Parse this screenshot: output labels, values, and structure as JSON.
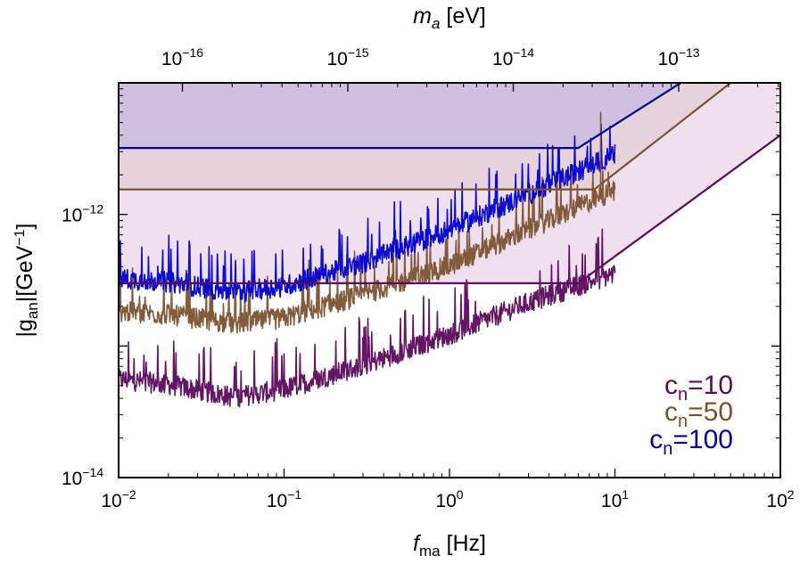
{
  "chart_data": {
    "type": "line",
    "x_scale": "log",
    "y_scale": "log",
    "xlim": [
      0.01,
      100
    ],
    "ylim": [
      1e-14,
      1e-11
    ],
    "xlabel_main": "f",
    "xlabel_sub": "ma",
    "xlabel_unit": " [Hz]",
    "ylabel_main": "|g",
    "ylabel_sub": "an",
    "ylabel_unit": "|[GeV",
    "ylabel_sup": "−1",
    "ylabel_end": "]",
    "top_xlabel_main": "m",
    "top_xlabel_sub": "a",
    "top_xlabel_unit": " [eV]",
    "x_ticks": [
      {
        "base": "10",
        "exp": "−2",
        "value": 0.01
      },
      {
        "base": "10",
        "exp": "−1",
        "value": 0.1
      },
      {
        "base": "10",
        "exp": "0",
        "value": 1
      },
      {
        "base": "10",
        "exp": "1",
        "value": 10
      },
      {
        "base": "10",
        "exp": "2",
        "value": 100
      }
    ],
    "y_ticks": [
      {
        "base": "10",
        "exp": "−14",
        "value": 1e-14
      },
      {
        "base": "10",
        "exp": "−12",
        "value": 1e-12
      }
    ],
    "top_ticks": [
      {
        "base": "10",
        "exp": "−16",
        "f_value": 0.0243
      },
      {
        "base": "10",
        "exp": "−15",
        "f_value": 0.243
      },
      {
        "base": "10",
        "exp": "−14",
        "f_value": 2.43
      },
      {
        "base": "10",
        "exp": "−13",
        "f_value": 24.3
      }
    ],
    "series": [
      {
        "name": "c",
        "name_sub": "n",
        "name_rest": "=10",
        "color": "#5a0a5c",
        "fill": "#ecd9ec",
        "limit_line": [
          [
            0.01,
            3e-13
          ],
          [
            6,
            3e-13
          ],
          [
            100,
            4e-12
          ]
        ],
        "noise_curve": [
          [
            0.01,
            5.5e-14
          ],
          [
            0.02,
            5e-14
          ],
          [
            0.05,
            4e-14
          ],
          [
            0.1,
            4.6e-14
          ],
          [
            0.3,
            7e-14
          ],
          [
            1,
            1.2e-13
          ],
          [
            3,
            2.1e-13
          ],
          [
            10,
            3.5e-13
          ]
        ]
      },
      {
        "name": "c",
        "name_sub": "n",
        "name_rest": "=50",
        "color": "#7a5230",
        "fill": "#e4d0d8",
        "limit_line": [
          [
            0.01,
            1.55e-12
          ],
          [
            7.5,
            1.55e-12
          ],
          [
            50,
            1e-11
          ]
        ],
        "noise_curve": [
          [
            0.01,
            1.8e-13
          ],
          [
            0.02,
            1.7e-13
          ],
          [
            0.05,
            1.45e-13
          ],
          [
            0.1,
            1.6e-13
          ],
          [
            0.3,
            2.4e-13
          ],
          [
            1,
            4e-13
          ],
          [
            3,
            7.5e-13
          ],
          [
            10,
            1.5e-12
          ]
        ]
      },
      {
        "name": "c",
        "name_sub": "n",
        "name_rest": "=100",
        "color": "#0000cc",
        "line_color": "#00008b",
        "fill": "#cbbce0",
        "limit_line": [
          [
            0.01,
            3.2e-12
          ],
          [
            6,
            3.2e-12
          ],
          [
            25,
            1e-11
          ]
        ],
        "noise_curve": [
          [
            0.01,
            3.2e-13
          ],
          [
            0.02,
            3e-13
          ],
          [
            0.05,
            2.5e-13
          ],
          [
            0.1,
            2.8e-13
          ],
          [
            0.3,
            4.2e-13
          ],
          [
            1,
            7.5e-13
          ],
          [
            3,
            1.4e-12
          ],
          [
            10,
            2.8e-12
          ]
        ]
      }
    ]
  }
}
